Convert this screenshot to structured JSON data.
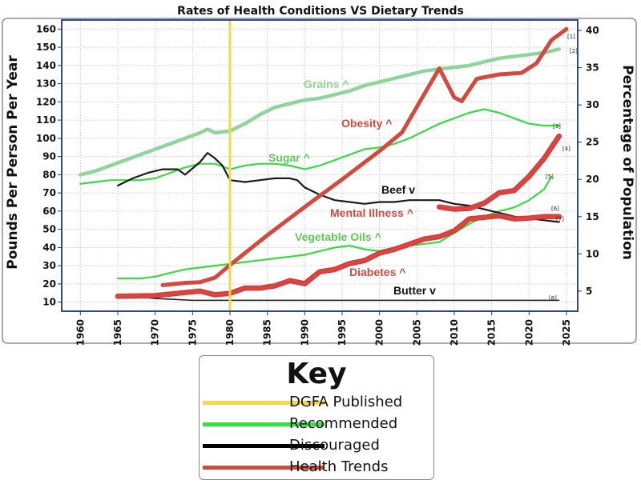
{
  "chart_data": {
    "type": "line",
    "title": "Rates of Health Conditions VS Dietary Trends",
    "ylabel_left": "Pounds Per Person Per Year",
    "ylabel_right": "Percentage of Population",
    "ylim_left": [
      5,
      165
    ],
    "ylim_right": [
      2.3,
      41.4
    ],
    "xlim": [
      1957.5,
      2026.5
    ],
    "x_ticks": [
      "1960",
      "1965",
      "1970",
      "1975",
      "1980",
      "1985",
      "1990",
      "1995",
      "2000",
      "2005",
      "2010",
      "2015",
      "2020",
      "2025"
    ],
    "y_ticks_left": [
      "10",
      "20",
      "30",
      "40",
      "50",
      "60",
      "70",
      "80",
      "90",
      "100",
      "110",
      "120",
      "130",
      "140",
      "150",
      "160"
    ],
    "y_ticks_right": [
      "5",
      "10",
      "15",
      "20",
      "25",
      "30",
      "35",
      "40"
    ],
    "reference_line": {
      "name": "DGFA Published",
      "x": 1980
    },
    "series": [
      {
        "name": "Grains",
        "label": "Grains ^",
        "category": "recommended",
        "axis": "left",
        "ref": "[2]",
        "x": [
          1960,
          1962,
          1964,
          1966,
          1968,
          1970,
          1972,
          1974,
          1976,
          1977,
          1978,
          1980,
          1982,
          1984,
          1986,
          1988,
          1990,
          1992,
          1994,
          1996,
          1998,
          2000,
          2002,
          2004,
          2006,
          2008,
          2010,
          2012,
          2014,
          2016,
          2018,
          2020,
          2022,
          2024
        ],
        "values": [
          80,
          82,
          85,
          88,
          91,
          94,
          97,
          100,
          103,
          105,
          103,
          104,
          108,
          113,
          117,
          119,
          121,
          122,
          124,
          126,
          129,
          131,
          133,
          135,
          137,
          138,
          139,
          140,
          142,
          144,
          145,
          146,
          147,
          149
        ]
      },
      {
        "name": "Sugar",
        "label": "Sugar ^",
        "category": "recommended",
        "axis": "left",
        "ref": "[3]",
        "x": [
          1960,
          1962,
          1964,
          1966,
          1968,
          1970,
          1972,
          1974,
          1976,
          1978,
          1980,
          1982,
          1984,
          1986,
          1988,
          1990,
          1992,
          1994,
          1996,
          1998,
          2000,
          2002,
          2004,
          2006,
          2008,
          2010,
          2012,
          2014,
          2016,
          2018,
          2020,
          2022,
          2024
        ],
        "values": [
          75,
          76,
          77,
          77,
          77,
          78,
          81,
          84,
          86,
          86,
          83,
          85,
          86,
          86,
          85,
          83,
          85,
          88,
          91,
          94,
          95,
          97,
          100,
          104,
          108,
          111,
          114,
          116,
          114,
          111,
          108,
          107,
          107
        ]
      },
      {
        "name": "Vegetable Oils",
        "label": "Vegetable Oils ^",
        "category": "recommended",
        "axis": "left",
        "ref": "[5]",
        "x": [
          1965,
          1968,
          1970,
          1972,
          1974,
          1976,
          1978,
          1980,
          1982,
          1984,
          1986,
          1988,
          1990,
          1992,
          1994,
          1996,
          1998,
          2000,
          2002,
          2004,
          2006,
          2008,
          2010,
          2012,
          2014,
          2016,
          2018,
          2020,
          2022,
          2023
        ],
        "values": [
          23,
          23,
          24,
          26,
          28,
          29,
          30,
          31,
          32,
          33,
          34,
          35,
          36,
          38,
          40,
          41,
          39,
          38,
          40,
          41,
          42,
          43,
          48,
          53,
          57,
          60,
          62,
          66,
          72,
          79
        ]
      },
      {
        "name": "Beef",
        "label": "Beef v",
        "category": "discouraged",
        "axis": "left",
        "ref": "[6]",
        "x": [
          1965,
          1967,
          1969,
          1971,
          1973,
          1974,
          1976,
          1977,
          1978,
          1979,
          1980,
          1982,
          1984,
          1986,
          1988,
          1989,
          1990,
          1992,
          1994,
          1996,
          1998,
          2000,
          2002,
          2004,
          2006,
          2008,
          2010,
          2012,
          2014,
          2016,
          2018,
          2020,
          2022,
          2024
        ],
        "values": [
          74,
          78,
          81,
          83,
          83,
          80,
          87,
          92,
          89,
          85,
          77,
          76,
          77,
          78,
          78,
          77,
          73,
          69,
          66,
          65,
          64,
          65,
          65,
          66,
          66,
          66,
          64,
          63,
          61,
          59,
          57,
          56,
          55,
          54
        ]
      },
      {
        "name": "Butter",
        "label": "Butter v",
        "category": "discouraged",
        "axis": "left",
        "ref": "[8]",
        "x": [
          1965,
          1970,
          1975,
          1980,
          1985,
          1990,
          1995,
          2000,
          2005,
          2010,
          2015,
          2020,
          2024
        ],
        "values": [
          14,
          12,
          11,
          11,
          11,
          11,
          11,
          11,
          11,
          11,
          11,
          11,
          11
        ]
      },
      {
        "name": "Obesity",
        "label": "Obesity ^",
        "category": "health",
        "axis": "right",
        "ref": "[1]",
        "x": [
          1971,
          1974,
          1976,
          1978,
          1980,
          1985,
          1990,
          1995,
          2000,
          2003,
          2006,
          2008,
          2010,
          2011,
          2013,
          2016,
          2019,
          2021,
          2023,
          2025
        ],
        "values": [
          5.8,
          6.1,
          6.2,
          6.8,
          8.5,
          12.5,
          16.3,
          20.0,
          23.8,
          26.3,
          31.5,
          34.9,
          31.0,
          30.5,
          33.5,
          34.1,
          34.3,
          35.6,
          38.7,
          40.2
        ]
      },
      {
        "name": "Mental Illness",
        "label": "Mental Illness ^",
        "category": "health",
        "axis": "right",
        "ref": "[4]",
        "x": [
          2008,
          2010,
          2012,
          2014,
          2016,
          2018,
          2020,
          2022,
          2024
        ],
        "values": [
          16.3,
          16.0,
          16.1,
          16.8,
          18.2,
          18.5,
          20.4,
          22.8,
          25.8
        ]
      },
      {
        "name": "Diabetes",
        "label": "Diabetes ^",
        "category": "health",
        "axis": "right",
        "ref": "[7]",
        "x": [
          1965,
          1970,
          1972,
          1974,
          1976,
          1978,
          1980,
          1982,
          1984,
          1986,
          1988,
          1990,
          1992,
          1994,
          1996,
          1998,
          2000,
          2002,
          2004,
          2006,
          2008,
          2010,
          2012,
          2014,
          2016,
          2018,
          2020,
          2022,
          2024
        ],
        "values": [
          4.3,
          4.4,
          4.6,
          4.8,
          5.0,
          4.5,
          4.7,
          5.4,
          5.4,
          5.7,
          6.4,
          6.0,
          7.6,
          7.9,
          8.7,
          9.1,
          10.1,
          10.6,
          11.3,
          12.0,
          12.3,
          13.1,
          14.7,
          14.9,
          15.1,
          14.7,
          14.8,
          15.0,
          15.0
        ]
      }
    ]
  },
  "legend": {
    "title": "Key",
    "items": [
      {
        "label": "DGFA Published",
        "color": "#f1d84a"
      },
      {
        "label": "Recommended",
        "color": "#36e040"
      },
      {
        "label": "Discouraged",
        "color": "#000000"
      },
      {
        "label": "Health Trends",
        "color": "#d04a3d"
      }
    ]
  },
  "colors": {
    "grains": "#8fd49a",
    "recommended": "#39d944",
    "discouraged": "#1a1a1a",
    "health": "#d14a3f",
    "health_bright": "#ee2233",
    "reference": "#f3d54a",
    "grid": "#b8b8b8",
    "plot_border": "#2f4a8c"
  }
}
